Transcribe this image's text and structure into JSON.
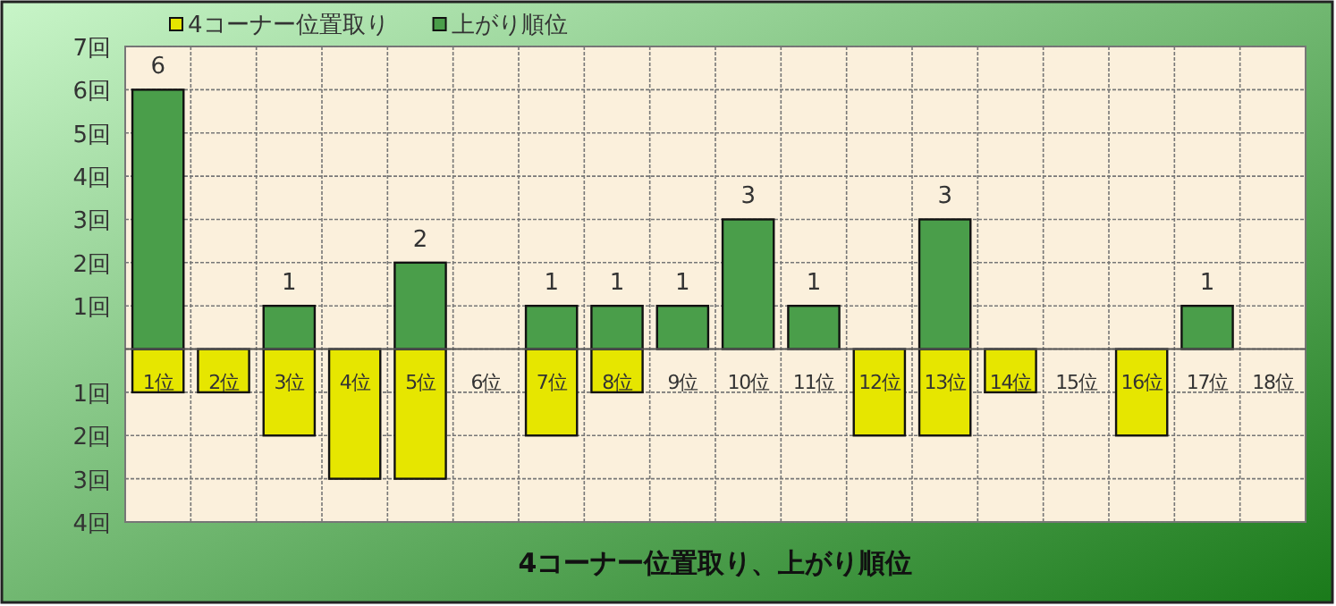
{
  "chart_data": {
    "type": "bar",
    "title": "4コーナー位置取り、上がり順位",
    "categories": [
      "1位",
      "2位",
      "3位",
      "4位",
      "5位",
      "6位",
      "7位",
      "8位",
      "9位",
      "10位",
      "11位",
      "12位",
      "13位",
      "14位",
      "15位",
      "16位",
      "17位",
      "18位"
    ],
    "stacked": true,
    "grid": true,
    "legend": "top",
    "ylim": [
      -4,
      7
    ],
    "yticks": [
      {
        "value": -4,
        "label": "4回"
      },
      {
        "value": -3,
        "label": "3回"
      },
      {
        "value": -2,
        "label": "2回"
      },
      {
        "value": -1,
        "label": "1回"
      },
      {
        "value": 0,
        "label": null
      },
      {
        "value": 1,
        "label": "1回"
      },
      {
        "value": 2,
        "label": "2回"
      },
      {
        "value": 3,
        "label": "3回"
      },
      {
        "value": 4,
        "label": "4回"
      },
      {
        "value": 5,
        "label": "5回"
      },
      {
        "value": 6,
        "label": "6回"
      },
      {
        "value": 7,
        "label": "7回"
      }
    ],
    "series": [
      {
        "name": "4コーナー位置取り",
        "color": "#e6e600",
        "values": [
          -1,
          -1,
          -2,
          -3,
          -3,
          0,
          -2,
          -1,
          0,
          0,
          0,
          -2,
          -2,
          -1,
          0,
          -2,
          0,
          0
        ]
      },
      {
        "name": "上がり順位",
        "color": "#4a9e4a",
        "values": [
          6,
          0,
          1,
          0,
          2,
          0,
          1,
          1,
          1,
          3,
          1,
          0,
          3,
          0,
          0,
          0,
          1,
          0
        ],
        "value_labels": [
          "6",
          null,
          "1",
          null,
          "2",
          null,
          "1",
          "1",
          "1",
          "3",
          "1",
          null,
          "3",
          null,
          null,
          null,
          "1",
          null
        ]
      }
    ]
  }
}
